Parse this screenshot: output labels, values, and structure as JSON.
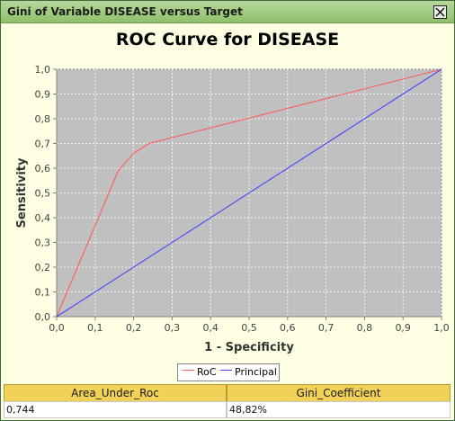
{
  "window": {
    "title": "Gini of Variable DISEASE versus Target"
  },
  "chart_data": {
    "type": "line",
    "title": "ROC Curve for DISEASE",
    "xlabel": "1 - Specificity",
    "ylabel": "Sensitivity",
    "xlim": [
      0,
      1
    ],
    "ylim": [
      0,
      1
    ],
    "xticks": [
      "0,0",
      "0,1",
      "0,2",
      "0,3",
      "0,4",
      "0,5",
      "0,6",
      "0,7",
      "0,8",
      "0,9",
      "1,0"
    ],
    "yticks": [
      "0,0",
      "0,1",
      "0,2",
      "0,3",
      "0,4",
      "0,5",
      "0,6",
      "0,7",
      "0,8",
      "0,9",
      "1,0"
    ],
    "grid": true,
    "legend_position": "bottom",
    "series": [
      {
        "name": "RoC",
        "color": "#ff5a5a",
        "x": [
          0,
          0.16,
          0.2,
          0.24,
          1.0
        ],
        "y": [
          0,
          0.59,
          0.66,
          0.7,
          1.0
        ]
      },
      {
        "name": "Principal",
        "color": "#4444ff",
        "x": [
          0,
          1.0
        ],
        "y": [
          0,
          1.0
        ]
      }
    ]
  },
  "legend": {
    "roc_label": "RoC",
    "principal_label": "Principal"
  },
  "results": {
    "headers": [
      "Area_Under_Roc",
      "Gini_Coefficient"
    ],
    "values": [
      "0,744",
      "48,82%"
    ]
  }
}
